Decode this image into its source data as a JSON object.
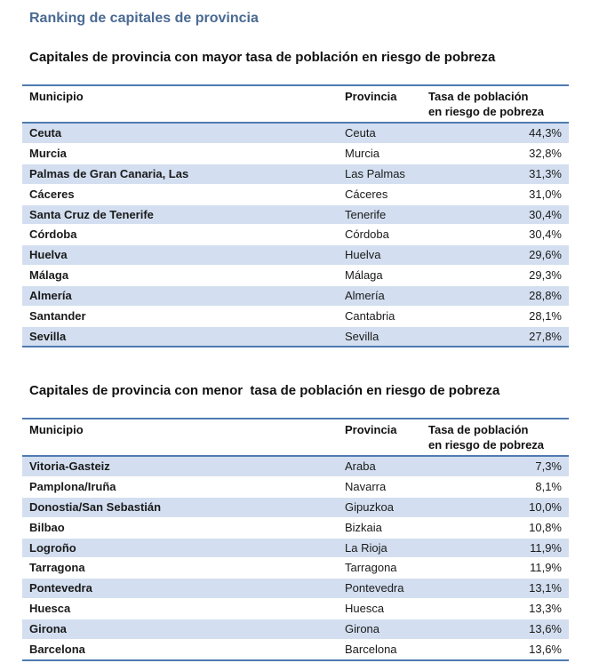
{
  "page_title": "Ranking de capitales de provincia",
  "headers": {
    "municipio": "Municipio",
    "provincia": "Provincia",
    "tasa_line1": "Tasa de población",
    "tasa_line2": "en riesgo de pobreza"
  },
  "section_mayor": {
    "title": "Capitales de provincia con mayor tasa de población en riesgo de pobreza",
    "rows": [
      {
        "municipio": "Ceuta",
        "provincia": "Ceuta",
        "tasa": "44,3%"
      },
      {
        "municipio": "Murcia",
        "provincia": "Murcia",
        "tasa": "32,8%"
      },
      {
        "municipio": "Palmas de Gran Canaria, Las",
        "provincia": "Las Palmas",
        "tasa": "31,3%"
      },
      {
        "municipio": "Cáceres",
        "provincia": "Cáceres",
        "tasa": "31,0%"
      },
      {
        "municipio": "Santa Cruz de Tenerife",
        "provincia": "Tenerife",
        "tasa": "30,4%"
      },
      {
        "municipio": "Córdoba",
        "provincia": "Córdoba",
        "tasa": "30,4%"
      },
      {
        "municipio": "Huelva",
        "provincia": "Huelva",
        "tasa": "29,6%"
      },
      {
        "municipio": "Málaga",
        "provincia": "Málaga",
        "tasa": "29,3%"
      },
      {
        "municipio": "Almería",
        "provincia": "Almería",
        "tasa": "28,8%"
      },
      {
        "municipio": "Santander",
        "provincia": "Cantabria",
        "tasa": "28,1%"
      },
      {
        "municipio": "Sevilla",
        "provincia": "Sevilla",
        "tasa": "27,8%"
      }
    ]
  },
  "section_menor": {
    "title": "Capitales de provincia con menor  tasa de población en riesgo de pobreza",
    "rows": [
      {
        "municipio": "Vitoria-Gasteiz",
        "provincia": "Araba",
        "tasa": "7,3%"
      },
      {
        "municipio": "Pamplona/Iruña",
        "provincia": "Navarra",
        "tasa": "8,1%"
      },
      {
        "municipio": "Donostia/San Sebastián",
        "provincia": "Gipuzkoa",
        "tasa": "10,0%"
      },
      {
        "municipio": "Bilbao",
        "provincia": "Bizkaia",
        "tasa": "10,8%"
      },
      {
        "municipio": "Logroño",
        "provincia": "La Rioja",
        "tasa": "11,9%"
      },
      {
        "municipio": "Tarragona",
        "provincia": "Tarragona",
        "tasa": "11,9%"
      },
      {
        "municipio": "Pontevedra",
        "provincia": "Pontevedra",
        "tasa": "13,1%"
      },
      {
        "municipio": "Huesca",
        "provincia": "Huesca",
        "tasa": "13,3%"
      },
      {
        "municipio": "Girona",
        "provincia": "Girona",
        "tasa": "13,6%"
      },
      {
        "municipio": "Barcelona",
        "provincia": "Barcelona",
        "tasa": "13,6%"
      }
    ]
  },
  "colors": {
    "title": "#4a6a93",
    "rule": "#4f7bb0",
    "row_shade": "#d3dff0"
  }
}
